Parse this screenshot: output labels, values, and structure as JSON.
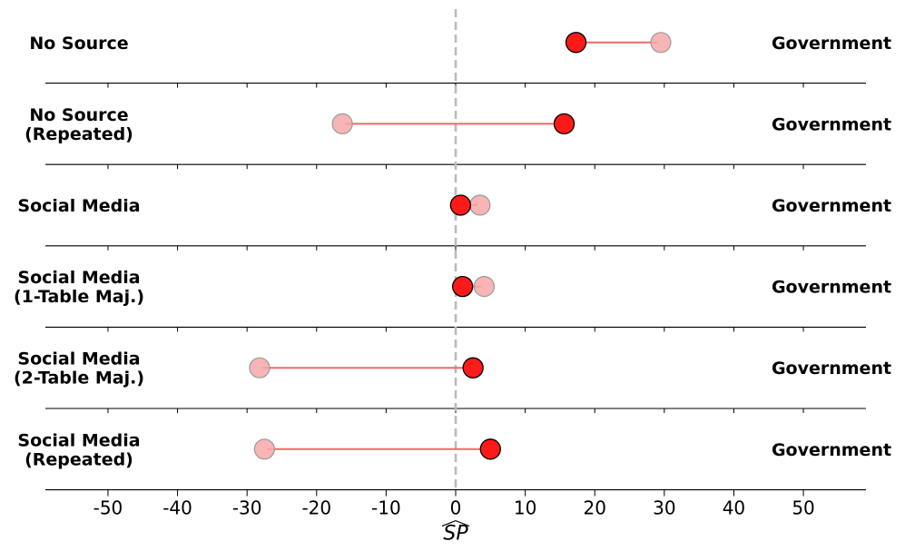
{
  "chart_data": {
    "type": "dumbbell",
    "xlabel": "SP",
    "xlim": [
      -59,
      59
    ],
    "xticks": [
      -50,
      -40,
      -30,
      -20,
      -10,
      0,
      10,
      20,
      30,
      40,
      50
    ],
    "zero_line": 0,
    "rows": [
      {
        "label_lines": [
          "No Source"
        ],
        "right_label": "Government",
        "start": 29.5,
        "end": 17.3
      },
      {
        "label_lines": [
          "No Source",
          "(Repeated)"
        ],
        "right_label": "Government",
        "start": -16.3,
        "end": 15.6
      },
      {
        "label_lines": [
          "Social Media"
        ],
        "right_label": "Government",
        "start": 3.5,
        "end": 0.7
      },
      {
        "label_lines": [
          "Social Media",
          "(1-Table Maj.)"
        ],
        "right_label": "Government",
        "start": 4.1,
        "end": 1.0
      },
      {
        "label_lines": [
          "Social Media",
          "(2-Table Maj.)"
        ],
        "right_label": "Government",
        "start": -28.2,
        "end": 2.5
      },
      {
        "label_lines": [
          "Social Media",
          "(Repeated)"
        ],
        "right_label": "Government",
        "start": -27.5,
        "end": 5.0
      }
    ],
    "colors": {
      "end_fill": "#ff1a1a",
      "start_fill": "#f7a8a8",
      "arrow": "#f06868",
      "zero_line": "#bbbbbb"
    }
  }
}
